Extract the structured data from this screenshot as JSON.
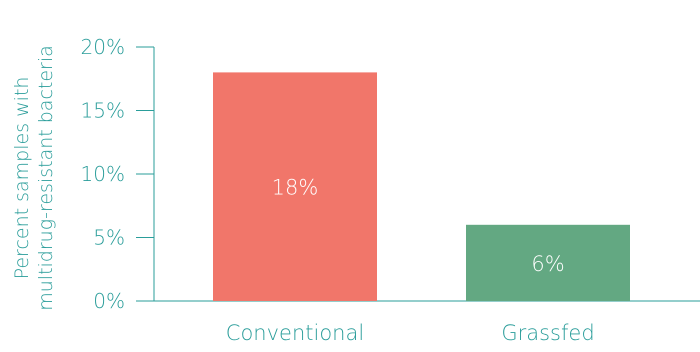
{
  "chart_data": {
    "type": "bar",
    "categories": [
      "Conventional",
      "Grassfed"
    ],
    "values": [
      18,
      6
    ],
    "value_labels": [
      "18%",
      "6%"
    ],
    "bar_colors": [
      "#f1766a",
      "#63a882"
    ],
    "ylabel_lines": [
      "Percent samples with",
      "multidrug-resistant bacteria"
    ],
    "ylim": [
      0,
      20
    ],
    "yticks": [
      0,
      5,
      10,
      15,
      20
    ],
    "ytick_labels": [
      "0%",
      "5%",
      "10%",
      "15%",
      "20%"
    ],
    "grid": false,
    "text_color": "#2a9d9a",
    "axis_color": "#2a9d9a"
  }
}
